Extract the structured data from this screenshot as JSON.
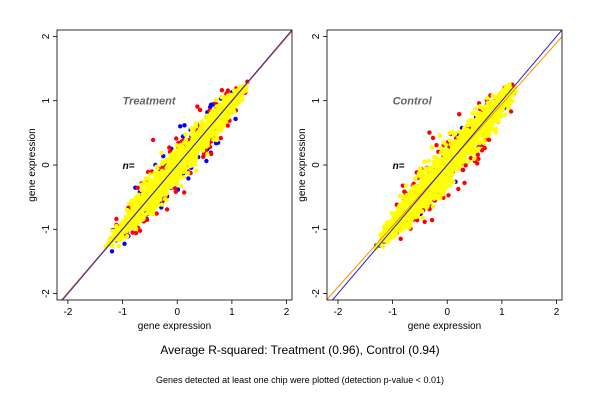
{
  "figure": {
    "caption": "Average R-squared: Treatment (0.96), Control (0.94)",
    "footnote": "Genes detected at least one chip were plotted (detection p-value < 0.01)"
  },
  "colors": {
    "yellow": "#ffff00",
    "red": "#ff0000",
    "blue": "#0000ff",
    "fit_orange": "#ff8c00",
    "fit_blue": "#2020cc",
    "panel_title": "#666666"
  },
  "chart_data": [
    {
      "type": "scatter",
      "title": "Treatment",
      "annotation": "n=",
      "xlabel": "gene expression",
      "ylabel": "gene expression",
      "xlim": [
        -2.2,
        2.1
      ],
      "ylim": [
        -2.1,
        2.1
      ],
      "xticks": [
        "-2",
        "-1",
        "0",
        "1",
        "2"
      ],
      "yticks": [
        "-2",
        "-1",
        "0",
        "1",
        "2"
      ],
      "lines": [
        {
          "color": "orange",
          "slope": 0.99,
          "intercept": 0.0
        },
        {
          "color": "blue",
          "slope": 1.0,
          "intercept": 0.0
        }
      ],
      "series": [
        {
          "color": "blue",
          "cloud": {
            "x_range": [
              -1.2,
              1.1
            ],
            "spread": 0.32,
            "count": 150
          }
        },
        {
          "color": "red",
          "cloud": {
            "x_range": [
              -1.1,
              1.2
            ],
            "spread": 0.26,
            "count": 250
          }
        },
        {
          "color": "yellow",
          "cloud": {
            "x_range": [
              -1.15,
              1.15
            ],
            "spread": 0.17,
            "count": 1600
          }
        }
      ],
      "grid": false
    },
    {
      "type": "scatter",
      "title": "Control",
      "annotation": "n=",
      "xlabel": "gene expression",
      "ylabel": "gene expression",
      "xlim": [
        -2.2,
        2.1
      ],
      "ylim": [
        -2.1,
        2.1
      ],
      "xticks": [
        "-2",
        "-1",
        "0",
        "1",
        "2"
      ],
      "yticks": [
        "-2",
        "-1",
        "0",
        "1",
        "2"
      ],
      "lines": [
        {
          "color": "orange",
          "slope": 0.95,
          "intercept": 0.0
        },
        {
          "color": "blue",
          "slope": 1.0,
          "intercept": 0.0
        }
      ],
      "series": [
        {
          "color": "blue",
          "cloud": {
            "x_range": [
              -1.2,
              1.1
            ],
            "spread": 0.22,
            "count": 80
          }
        },
        {
          "color": "red",
          "cloud": {
            "x_range": [
              -1.1,
              1.2
            ],
            "spread": 0.3,
            "count": 250
          }
        },
        {
          "color": "yellow",
          "cloud": {
            "x_range": [
              -1.15,
              1.15
            ],
            "spread": 0.2,
            "count": 1600
          }
        }
      ],
      "grid": false
    }
  ]
}
